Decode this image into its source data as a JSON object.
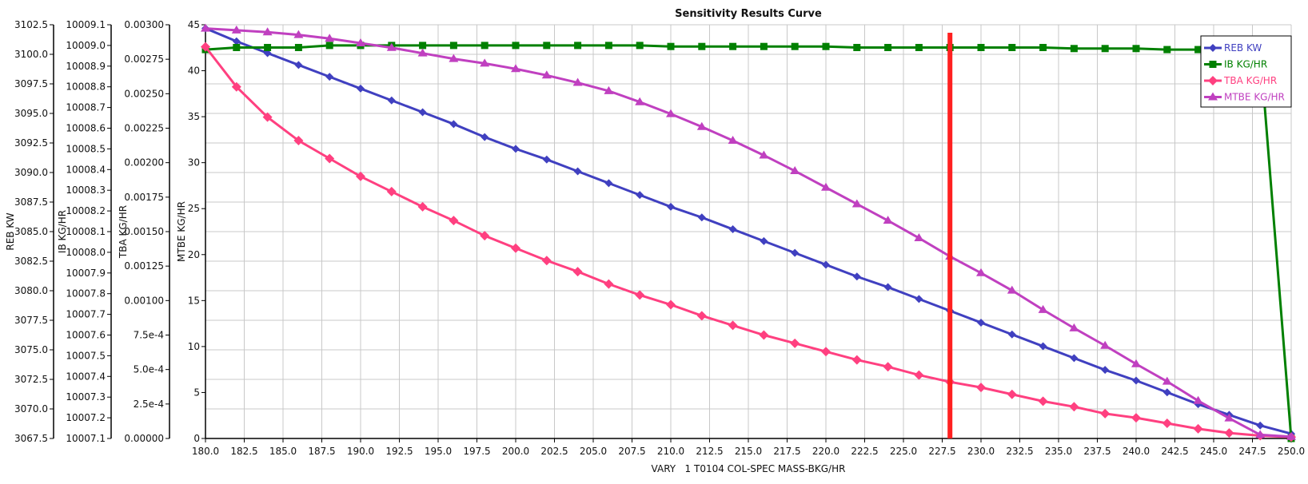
{
  "chart_data": {
    "type": "line",
    "title": "Sensitivity Results Curve",
    "xlabel": "VARY   1 T0104 COL-SPEC MASS-BKG/HR",
    "xlim": [
      180,
      250
    ],
    "xticks": [
      "180.0",
      "182.5",
      "185.0",
      "187.5",
      "190.0",
      "192.5",
      "195.0",
      "197.5",
      "200.0",
      "202.5",
      "205.0",
      "207.5",
      "210.0",
      "212.5",
      "215.0",
      "217.5",
      "220.0",
      "222.5",
      "225.0",
      "227.5",
      "230.0",
      "232.5",
      "235.0",
      "237.5",
      "240.0",
      "242.5",
      "245.0",
      "247.5",
      "250.0"
    ],
    "grid": true,
    "legend_position": "top-right",
    "marker_line_x": 228,
    "marker_line_color": "#ff2020",
    "x": [
      180,
      182,
      184,
      186,
      188,
      190,
      192,
      194,
      196,
      198,
      200,
      202,
      204,
      206,
      208,
      210,
      212,
      214,
      216,
      218,
      220,
      222,
      224,
      226,
      228,
      230,
      232,
      234,
      236,
      238,
      240,
      242,
      244,
      246,
      248,
      250
    ],
    "axes": [
      {
        "label": "REB KW",
        "ylim": [
          3067.5,
          3102.5
        ],
        "ticks": [
          "3067.5",
          "3070.0",
          "3072.5",
          "3075.0",
          "3077.5",
          "3080.0",
          "3082.5",
          "3085.0",
          "3087.5",
          "3090.0",
          "3092.5",
          "3095.0",
          "3097.5",
          "3100.0",
          "3102.5"
        ]
      },
      {
        "label": "IB KG/HR",
        "ylim": [
          10007.1,
          10009.1
        ],
        "ticks": [
          "10007.1",
          "10007.2",
          "10007.3",
          "10007.4",
          "10007.5",
          "10007.6",
          "10007.7",
          "10007.8",
          "10007.9",
          "10008.0",
          "10008.1",
          "10008.2",
          "10008.3",
          "10008.4",
          "10008.5",
          "10008.6",
          "10008.7",
          "10008.8",
          "10008.9",
          "10009.0",
          "10009.1"
        ]
      },
      {
        "label": "TBA KG/HR",
        "ylim": [
          0,
          0.003
        ],
        "ticks": [
          "0.00000",
          "2.5e-4",
          "5.0e-4",
          "7.5e-4",
          "0.00100",
          "0.00125",
          "0.00150",
          "0.00175",
          "0.00200",
          "0.00225",
          "0.00250",
          "0.00275",
          "0.00300"
        ]
      },
      {
        "label": "MTBE KG/HR",
        "ylim": [
          0,
          45
        ],
        "ticks": [
          "0",
          "5",
          "10",
          "15",
          "20",
          "25",
          "30",
          "35",
          "40",
          "45"
        ]
      }
    ],
    "series": [
      {
        "name": "REB KW",
        "axis": 0,
        "color": "#4040c0",
        "marker": "diamond-dot",
        "values": [
          3102.2,
          3101.1,
          3100.1,
          3099.1,
          3098.1,
          3097.1,
          3096.1,
          3095.1,
          3094.1,
          3093.0,
          3092.0,
          3091.1,
          3090.1,
          3089.1,
          3088.1,
          3087.1,
          3086.2,
          3085.2,
          3084.2,
          3083.2,
          3082.2,
          3081.2,
          3080.3,
          3079.3,
          3078.3,
          3077.3,
          3076.3,
          3075.3,
          3074.3,
          3073.3,
          3072.4,
          3071.4,
          3070.4,
          3069.5,
          3068.6,
          3067.9
        ]
      },
      {
        "name": "IB KG/HR",
        "axis": 1,
        "color": "#008000",
        "marker": "square",
        "values": [
          10008.98,
          10008.99,
          10008.99,
          10008.99,
          10009.0,
          10009.0,
          10009.0,
          10009.0,
          10009.0,
          10009.0,
          10009.0,
          10009.0,
          10009.0,
          10009.0,
          10009.0,
          10008.995,
          10008.995,
          10008.995,
          10008.995,
          10008.995,
          10008.995,
          10008.99,
          10008.99,
          10008.99,
          10008.99,
          10008.99,
          10008.99,
          10008.99,
          10008.985,
          10008.985,
          10008.985,
          10008.98,
          10008.98,
          10008.98,
          10008.98,
          10007.1
        ]
      },
      {
        "name": "TBA KG/HR",
        "axis": 2,
        "color": "#ff4080",
        "marker": "diamond",
        "values": [
          0.00284,
          0.00255,
          0.00233,
          0.00216,
          0.00203,
          0.0019,
          0.00179,
          0.00168,
          0.00158,
          0.00147,
          0.00138,
          0.00129,
          0.00121,
          0.00112,
          0.00104,
          0.00097,
          0.00089,
          0.00082,
          0.00075,
          0.00069,
          0.00063,
          0.00057,
          0.00052,
          0.00046,
          0.00041,
          0.00037,
          0.00032,
          0.00027,
          0.00023,
          0.00018,
          0.00015,
          0.00011,
          7e-05,
          4e-05,
          2e-05,
          1e-05
        ]
      },
      {
        "name": "MTBE KG/HR",
        "axis": 3,
        "color": "#c040c0",
        "marker": "triangle",
        "values": [
          44.6,
          44.4,
          44.2,
          43.9,
          43.5,
          43.0,
          42.5,
          41.9,
          41.3,
          40.8,
          40.2,
          39.5,
          38.7,
          37.8,
          36.6,
          35.3,
          33.9,
          32.4,
          30.8,
          29.1,
          27.3,
          25.5,
          23.7,
          21.8,
          19.8,
          18.0,
          16.1,
          14.0,
          12.0,
          10.1,
          8.1,
          6.2,
          4.1,
          2.2,
          0.4,
          0.2
        ]
      }
    ]
  }
}
